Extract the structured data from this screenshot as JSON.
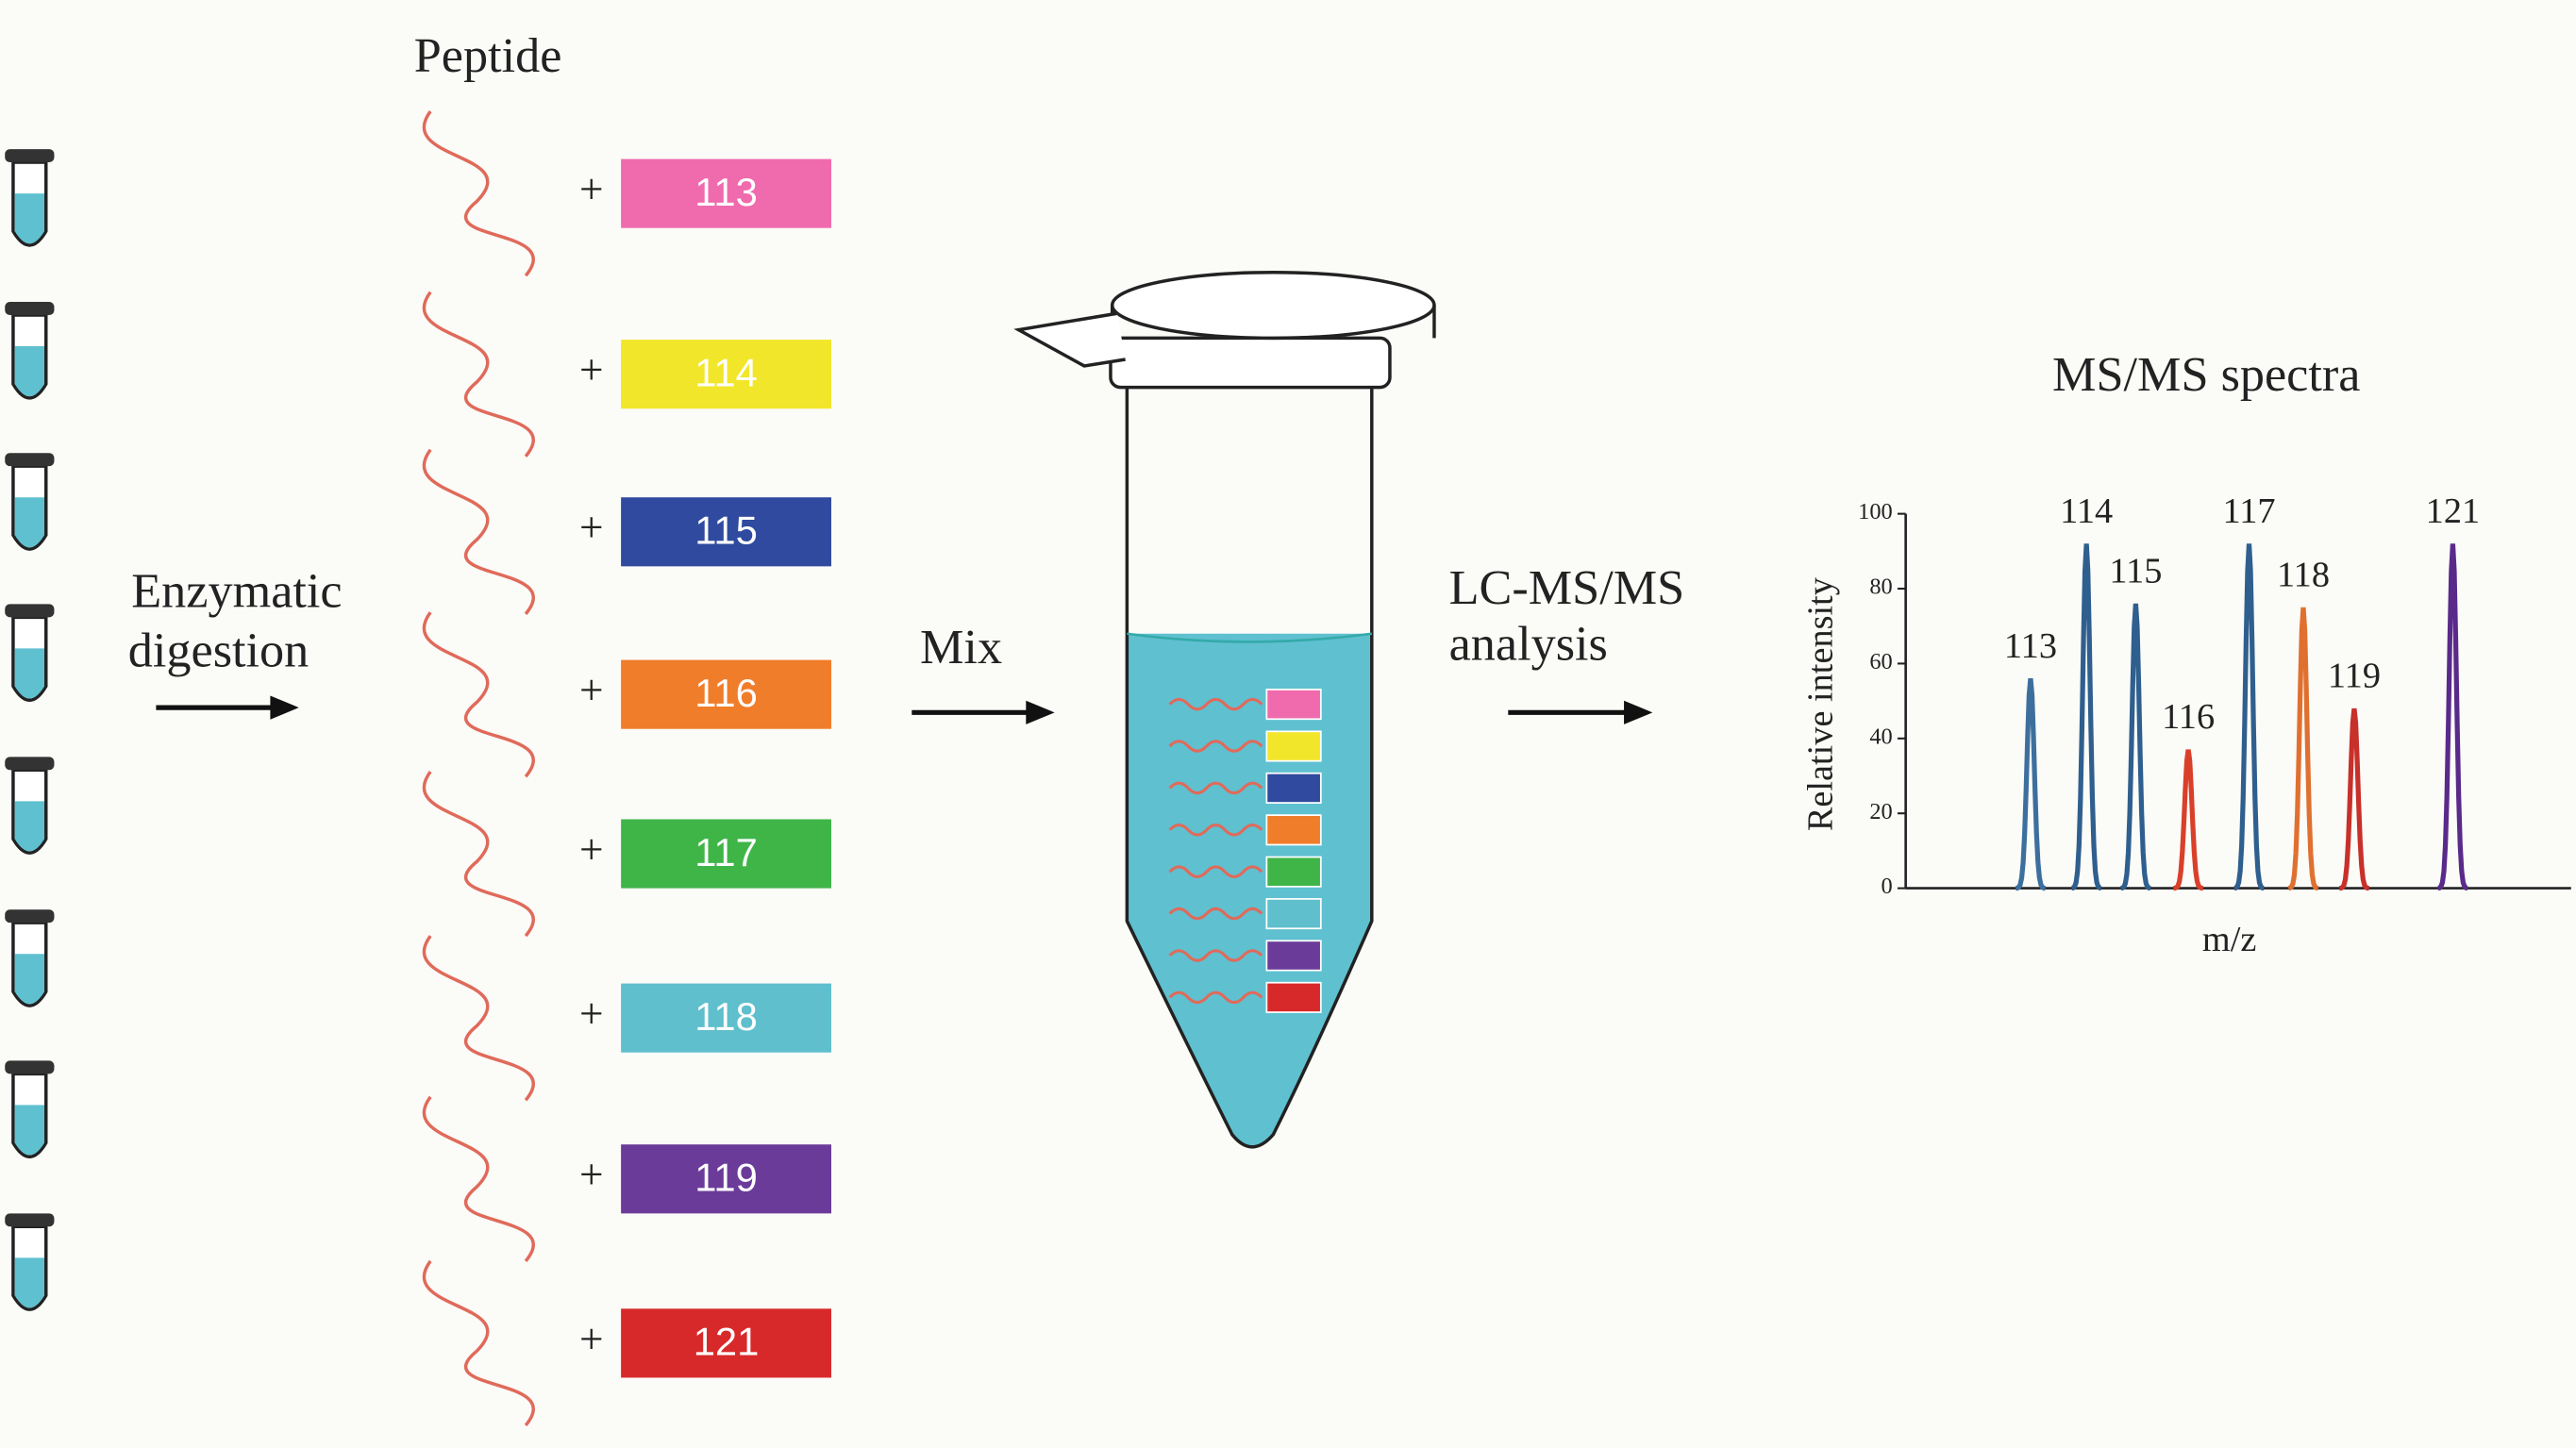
{
  "labels": {
    "peptide": "Peptide",
    "plus": "+",
    "digestion": [
      "Enzymatic",
      "digestion"
    ],
    "mix": "Mix",
    "analysis": [
      "LC-MS/MS",
      "analysis"
    ]
  },
  "tags": [
    {
      "label": "113",
      "color": "#f06aae"
    },
    {
      "label": "114",
      "color": "#f2e62a"
    },
    {
      "label": "115",
      "color": "#2f4a9e"
    },
    {
      "label": "116",
      "color": "#f07d2a"
    },
    {
      "label": "117",
      "color": "#3fb548"
    },
    {
      "label": "118",
      "color": "#5fbfcc"
    },
    {
      "label": "119",
      "color": "#6b3b9a"
    },
    {
      "label": "121",
      "color": "#d8292a"
    }
  ],
  "spectrum": {
    "title": "MS/MS spectra",
    "y_label": "Relative intensity",
    "x_label": "m/z",
    "ylim": [
      0,
      100
    ],
    "yticks": [
      0,
      20,
      40,
      60,
      80,
      100
    ],
    "peaks": [
      {
        "label": "113",
        "value": 56,
        "color": "#3d6f9e"
      },
      {
        "label": "114",
        "value": 92,
        "color": "#2f5f8e"
      },
      {
        "label": "115",
        "value": 76,
        "color": "#2f5f8e"
      },
      {
        "label": "116",
        "value": 37,
        "color": "#d9402a"
      },
      {
        "label": "117",
        "value": 92,
        "color": "#2f5f8e"
      },
      {
        "label": "118",
        "value": 75,
        "color": "#e07030"
      },
      {
        "label": "119",
        "value": 48,
        "color": "#c8302a"
      },
      {
        "label": "121",
        "value": 92,
        "color": "#5a2a8a"
      }
    ]
  }
}
